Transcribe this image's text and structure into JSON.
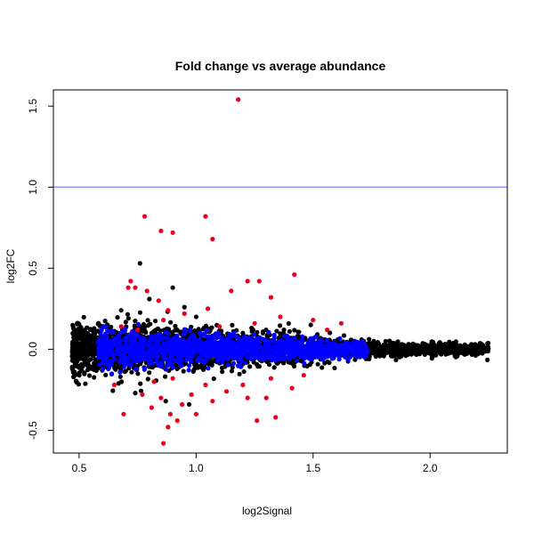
{
  "chart_data": {
    "type": "scatter",
    "title": "Fold change vs average abundance",
    "xlabel": "log2Signal",
    "ylabel": "log2FC",
    "xlim": [
      0.39,
      2.33
    ],
    "ylim": [
      -0.64,
      1.6
    ],
    "xticks": [
      "0.5",
      "1.0",
      "1.5",
      "2.0"
    ],
    "xtick_values": [
      0.5,
      1.0,
      1.5,
      2.0
    ],
    "yticks": [
      "-0.5",
      "0.0",
      "0.5",
      "1.0",
      "1.5"
    ],
    "ytick_values": [
      -0.5,
      0.0,
      0.5,
      1.0,
      1.5
    ],
    "reference_line": {
      "y": 1.0,
      "color": "#8080ff"
    },
    "grid": false,
    "legend": "none",
    "colors": {
      "black": "#000000",
      "blue": "#0000ff",
      "red": "#e8001c"
    },
    "series": [
      {
        "color": "#e8001c",
        "points": [
          [
            1.18,
            1.54
          ],
          [
            0.78,
            0.82
          ],
          [
            1.04,
            0.82
          ],
          [
            0.85,
            0.73
          ],
          [
            0.9,
            0.72
          ],
          [
            1.07,
            0.68
          ],
          [
            1.42,
            0.46
          ],
          [
            1.22,
            0.42
          ],
          [
            1.27,
            0.42
          ],
          [
            0.72,
            0.42
          ],
          [
            0.74,
            0.38
          ],
          [
            0.84,
            0.3
          ],
          [
            1.15,
            0.36
          ],
          [
            1.32,
            0.32
          ],
          [
            0.71,
            0.38
          ],
          [
            0.79,
            0.36
          ],
          [
            0.88,
            0.24
          ],
          [
            1.36,
            0.2
          ],
          [
            1.05,
            0.25
          ],
          [
            0.95,
            0.22
          ],
          [
            1.5,
            0.18
          ],
          [
            1.62,
            0.16
          ],
          [
            0.68,
            0.14
          ],
          [
            1.25,
            0.16
          ],
          [
            0.86,
            0.18
          ],
          [
            1.1,
            0.14
          ],
          [
            1.56,
            0.12
          ],
          [
            0.75,
            0.12
          ],
          [
            0.86,
            -0.58
          ],
          [
            0.88,
            -0.48
          ],
          [
            0.92,
            -0.44
          ],
          [
            0.89,
            -0.4
          ],
          [
            0.81,
            -0.36
          ],
          [
            1.26,
            -0.44
          ],
          [
            1.34,
            -0.42
          ],
          [
            0.69,
            -0.4
          ],
          [
            1.0,
            -0.4
          ],
          [
            1.07,
            -0.32
          ],
          [
            0.94,
            -0.34
          ],
          [
            0.85,
            -0.3
          ],
          [
            1.22,
            -0.3
          ],
          [
            1.3,
            -0.3
          ],
          [
            0.98,
            -0.28
          ],
          [
            0.77,
            -0.28
          ],
          [
            1.13,
            -0.26
          ],
          [
            1.41,
            -0.24
          ],
          [
            0.65,
            -0.22
          ],
          [
            1.04,
            -0.22
          ],
          [
            1.2,
            -0.22
          ],
          [
            0.82,
            -0.2
          ],
          [
            1.32,
            -0.18
          ],
          [
            1.46,
            -0.16
          ],
          [
            0.9,
            -0.18
          ]
        ]
      }
    ]
  }
}
